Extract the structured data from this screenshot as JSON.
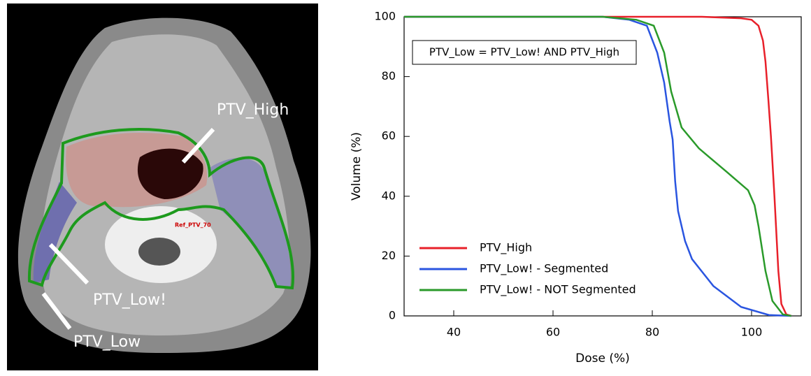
{
  "image": {
    "labels": [
      "PTV_High",
      "PTV_Low!",
      "PTV_Low",
      "Ref_PTV_70"
    ]
  },
  "chart_data": {
    "type": "line",
    "xlabel": "Dose (%)",
    "ylabel": "Volume (%)",
    "annotation": "PTV_Low = PTV_Low! AND PTV_High",
    "xlim": [
      30,
      110
    ],
    "xticks": [
      40,
      60,
      80,
      100
    ],
    "ylim": [
      0,
      100
    ],
    "yticks": [
      0,
      20,
      40,
      60,
      80,
      100
    ],
    "legend": "lower left",
    "series": [
      {
        "name": "PTV_High",
        "color": "#e8202a",
        "x": [
          30,
          90,
          97.9,
          100,
          101.4,
          102.3,
          102.8,
          103.4,
          103.9,
          104.6,
          105.4,
          106,
          107,
          108
        ],
        "values": [
          100,
          100,
          99.5,
          99,
          97,
          92,
          85,
          72,
          60,
          40,
          15,
          4,
          0.5,
          0
        ]
      },
      {
        "name": "PTV_Low! - Segmented",
        "color": "#2a55e0",
        "x": [
          30,
          70,
          75.4,
          78.9,
          81,
          82.4,
          83.5,
          84.1,
          84.6,
          85.2,
          86.6,
          88,
          92.3,
          97.9,
          103.5,
          108
        ],
        "values": [
          100,
          100,
          99,
          97,
          88,
          78,
          65,
          59,
          45,
          35,
          25,
          19,
          10,
          3,
          0.3,
          0
        ]
      },
      {
        "name": "PTV_Low! - NOT Segmented",
        "color": "#2a9a2a",
        "x": [
          30,
          70,
          76.8,
          80.3,
          82.4,
          83.8,
          85.9,
          89.4,
          95.1,
          99.3,
          100.6,
          101.4,
          102.8,
          104.2,
          106.3,
          108
        ],
        "values": [
          100,
          100,
          99,
          97,
          88,
          75,
          63,
          56,
          48,
          42,
          37,
          30,
          15,
          5,
          0.5,
          0
        ]
      }
    ]
  }
}
